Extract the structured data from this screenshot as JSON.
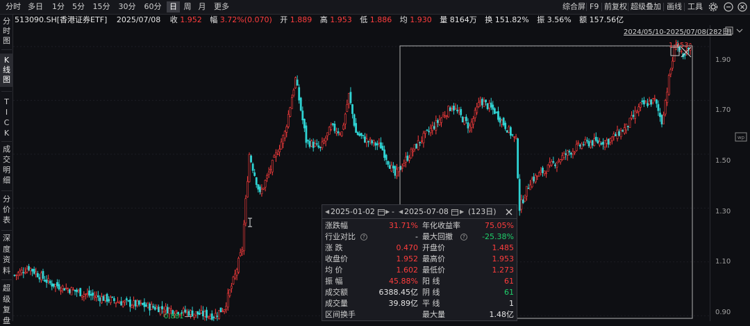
{
  "toolbar": {
    "periods": [
      "分时",
      "多日",
      "1分",
      "5分",
      "15分",
      "30分",
      "60分",
      "日",
      "周",
      "月",
      "更多"
    ],
    "active_period": "日",
    "right": [
      "综合屏",
      "F9",
      "前复权",
      "超级叠加",
      "画线",
      "工具"
    ],
    "icons": [
      "settings-icon",
      "minimize-icon",
      "close-icon"
    ]
  },
  "sidebar": {
    "items": [
      "分时图",
      "K线图",
      "TICK",
      "成交明细",
      "分价表",
      "深度资料",
      "超级复盘"
    ],
    "active": "K线图"
  },
  "info": {
    "code": "513090.SH[香港证券ETF]",
    "date": "2025/07/08",
    "close_label": "收",
    "close": "1.952",
    "change_label": "幅",
    "change": "3.72%(0.070)",
    "open_label": "开",
    "open": "1.889",
    "high_label": "高",
    "high": "1.953",
    "low_label": "低",
    "low": "1.886",
    "avg_label": "均",
    "avg": "1.930",
    "vol_label": "量",
    "vol": "8164万",
    "turnover_label": "换",
    "turnover": "151.82%",
    "amp_label": "振",
    "amp": "3.56%",
    "amount_label": "额",
    "amount": "157.56亿"
  },
  "range_label": "2024/05/10-2025/07/08(282日)",
  "yaxis": [
    "1.90",
    "1.70",
    "1.50",
    "1.30",
    "1.10",
    "0.90"
  ],
  "marks": {
    "high": "1.953",
    "low": "0.881"
  },
  "panel": {
    "start_date": "2025-01-02",
    "end_date": "2025-07-08",
    "sep": "-",
    "days": "(123日)",
    "rows": [
      [
        "涨跌幅",
        "31.71%",
        "年化收益率",
        "75.05%"
      ],
      [
        "行业对比",
        "-",
        "最大回撤",
        "-25.38%"
      ],
      [
        "涨 跌",
        "0.470",
        "开盘价",
        "1.485"
      ],
      [
        "收盘价",
        "1.952",
        "最高价",
        "1.953"
      ],
      [
        "均 价",
        "1.602",
        "最低价",
        "1.273"
      ],
      [
        "振 幅",
        "45.88%",
        "阳 线",
        "61"
      ],
      [
        "成交额",
        "6388.45亿",
        "阴 线",
        "61"
      ],
      [
        "成交量",
        "39.89亿",
        "平 线",
        "1"
      ],
      [
        "区间换手",
        "",
        "最大量",
        "1.48亿"
      ]
    ]
  },
  "chart_data": {
    "type": "candlestick",
    "title": "513090.SH 日K",
    "ylim": [
      0.88,
      1.98
    ],
    "yticks": [
      0.9,
      1.1,
      1.3,
      1.5,
      1.7,
      1.9
    ],
    "colors": {
      "up": "#ff3d3d",
      "down": "#2fd3d3"
    }
  }
}
